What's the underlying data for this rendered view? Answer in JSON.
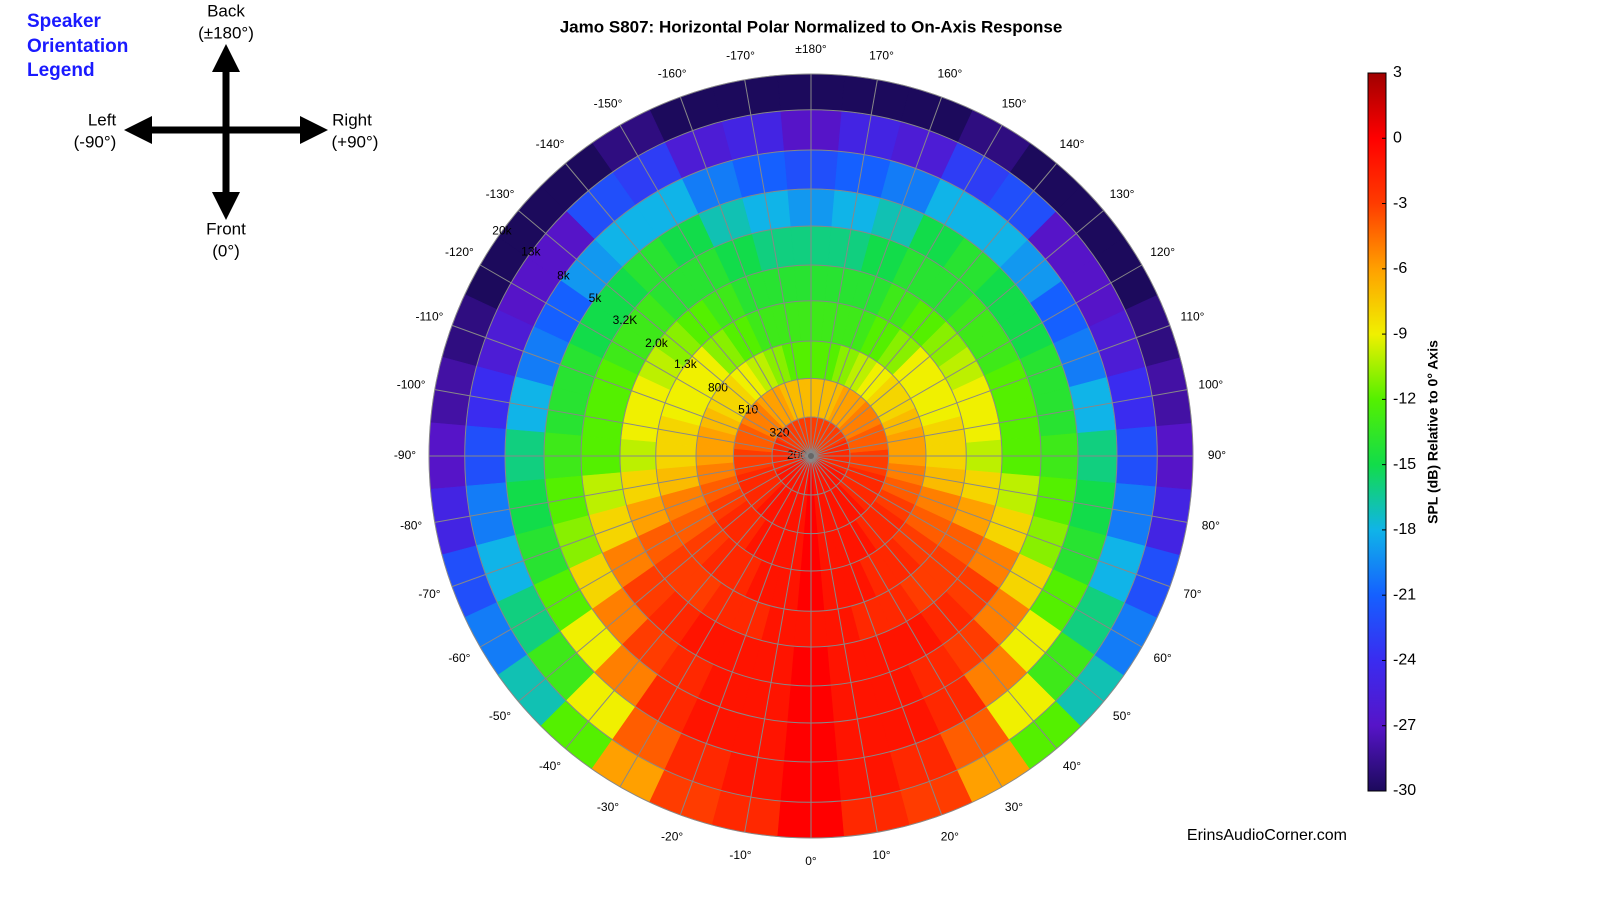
{
  "orientation_legend": {
    "title_lines": [
      "Speaker",
      "Orientation",
      "Legend"
    ],
    "back": [
      "Back",
      "(±180°)"
    ],
    "left": [
      "Left",
      "(-90°)"
    ],
    "right": [
      "Right",
      "(+90°)"
    ],
    "front": [
      "Front",
      "(0°)"
    ]
  },
  "watermark": "ErinsAudioCorner.com",
  "chart_data": {
    "type": "polar-heatmap",
    "title": "Jamo S807: Horizontal Polar Normalized to On-Axis Response",
    "angles": [
      {
        "value": -170,
        "label": "-170°"
      },
      {
        "value": -160,
        "label": "-160°"
      },
      {
        "value": -150,
        "label": "-150°"
      },
      {
        "value": -140,
        "label": "-140°"
      },
      {
        "value": -130,
        "label": "-130°"
      },
      {
        "value": -120,
        "label": "-120°"
      },
      {
        "value": -110,
        "label": "-110°"
      },
      {
        "value": -100,
        "label": "-100°"
      },
      {
        "value": -90,
        "label": "-90°"
      },
      {
        "value": -80,
        "label": "-80°"
      },
      {
        "value": -70,
        "label": "-70°"
      },
      {
        "value": -60,
        "label": "-60°"
      },
      {
        "value": -50,
        "label": "-50°"
      },
      {
        "value": -40,
        "label": "-40°"
      },
      {
        "value": -30,
        "label": "-30°"
      },
      {
        "value": -20,
        "label": "-20°"
      },
      {
        "value": -10,
        "label": "-10°"
      },
      {
        "value": 0,
        "label": "0°"
      },
      {
        "value": 10,
        "label": "10°"
      },
      {
        "value": 20,
        "label": "20°"
      },
      {
        "value": 30,
        "label": "30°"
      },
      {
        "value": 40,
        "label": "40°"
      },
      {
        "value": 50,
        "label": "50°"
      },
      {
        "value": 60,
        "label": "60°"
      },
      {
        "value": 70,
        "label": "70°"
      },
      {
        "value": 80,
        "label": "80°"
      },
      {
        "value": 90,
        "label": "90°"
      },
      {
        "value": 100,
        "label": "100°"
      },
      {
        "value": 110,
        "label": "110°"
      },
      {
        "value": 120,
        "label": "120°"
      },
      {
        "value": 130,
        "label": "130°"
      },
      {
        "value": 140,
        "label": "140°"
      },
      {
        "value": 150,
        "label": "150°"
      },
      {
        "value": 160,
        "label": "160°"
      },
      {
        "value": 170,
        "label": "170°"
      },
      {
        "value": 180,
        "label": "±180°"
      }
    ],
    "frequencies": [
      200,
      320,
      510,
      800,
      {
        "value": 1300,
        "label": "1.3k"
      },
      {
        "value": 2000,
        "label": "2.0k"
      },
      {
        "value": 3200,
        "label": "3.2K"
      },
      {
        "value": 5000,
        "label": "5k"
      },
      {
        "value": 8000,
        "label": "8k"
      },
      {
        "value": 13000,
        "label": "13k"
      },
      {
        "value": 20000,
        "label": "20k"
      }
    ],
    "values": [
      [
        -3,
        -7,
        -12,
        -13,
        -14,
        -16,
        -18,
        -21,
        -25,
        -30
      ],
      [
        -3,
        -7,
        -11,
        -13,
        -14,
        -15,
        -17,
        -20,
        -26,
        -30
      ],
      [
        -3,
        -6,
        -10,
        -12,
        -13,
        -14,
        -15,
        -18,
        -23,
        -29
      ],
      [
        -3,
        -6,
        -9,
        -11,
        -12,
        -14,
        -14,
        -18,
        -22,
        -30
      ],
      [
        -3,
        -5,
        -8,
        -9,
        -11,
        -13,
        -15,
        -19,
        -27,
        -30
      ],
      [
        -3,
        -5,
        -8,
        -9,
        -10,
        -13,
        -15,
        -21,
        -27,
        -30
      ],
      [
        -2,
        -4,
        -7,
        -9,
        -9,
        -12,
        -14,
        -20,
        -26,
        -29
      ],
      [
        -2,
        -4,
        -6,
        -8,
        -9,
        -12,
        -14,
        -18,
        -24,
        -28
      ],
      [
        -2,
        -3,
        -6,
        -8,
        -10,
        -12,
        -13,
        -16,
        -22,
        -27
      ],
      [
        -2,
        -3,
        -5,
        -7,
        -8,
        -10,
        -12,
        -15,
        -20,
        -25
      ],
      [
        -2,
        -2,
        -4,
        -5,
        -6,
        -8,
        -11,
        -14,
        -18,
        -22
      ],
      [
        -1,
        -2,
        -3,
        -4,
        -4,
        -5,
        -8,
        -12,
        -16,
        -20
      ],
      [
        -1,
        -2,
        -2,
        -3,
        -3,
        -3,
        -5,
        -9,
        -13,
        -17
      ],
      [
        -1,
        -1,
        -2,
        -2,
        -3,
        -2,
        -3,
        -5,
        -9,
        -12
      ],
      [
        -1,
        -1,
        -1,
        -2,
        -2,
        -1,
        -2,
        -2,
        -4,
        -6
      ],
      [
        -1,
        -1,
        -1,
        -1,
        -2,
        -1,
        -1,
        -1,
        -2,
        -3
      ],
      [
        -1,
        -1,
        -1,
        -1,
        -1,
        -1,
        -1,
        -1,
        -1,
        -2
      ],
      [
        0,
        0,
        0,
        0,
        -1,
        0,
        0,
        0,
        0,
        0
      ],
      [
        -1,
        -1,
        -1,
        -1,
        -1,
        -1,
        -1,
        -1,
        -1,
        -2
      ],
      [
        -1,
        -1,
        -1,
        -1,
        -2,
        -1,
        -1,
        -1,
        -2,
        -3
      ],
      [
        -1,
        -1,
        -1,
        -2,
        -2,
        -1,
        -2,
        -2,
        -4,
        -6
      ],
      [
        -1,
        -1,
        -2,
        -2,
        -3,
        -2,
        -3,
        -5,
        -9,
        -12
      ],
      [
        -1,
        -2,
        -2,
        -3,
        -3,
        -3,
        -5,
        -9,
        -13,
        -17
      ],
      [
        -1,
        -2,
        -3,
        -4,
        -4,
        -5,
        -8,
        -12,
        -16,
        -20
      ],
      [
        -2,
        -2,
        -4,
        -5,
        -6,
        -8,
        -11,
        -14,
        -18,
        -22
      ],
      [
        -2,
        -3,
        -5,
        -7,
        -8,
        -10,
        -12,
        -15,
        -20,
        -25
      ],
      [
        -2,
        -3,
        -6,
        -8,
        -10,
        -12,
        -13,
        -16,
        -22,
        -27
      ],
      [
        -2,
        -4,
        -6,
        -8,
        -9,
        -12,
        -14,
        -18,
        -24,
        -28
      ],
      [
        -2,
        -4,
        -7,
        -9,
        -9,
        -12,
        -14,
        -20,
        -26,
        -29
      ],
      [
        -3,
        -5,
        -8,
        -9,
        -10,
        -13,
        -15,
        -21,
        -27,
        -30
      ],
      [
        -3,
        -5,
        -8,
        -9,
        -11,
        -13,
        -15,
        -19,
        -27,
        -30
      ],
      [
        -3,
        -6,
        -9,
        -11,
        -12,
        -14,
        -14,
        -18,
        -22,
        -30
      ],
      [
        -3,
        -6,
        -10,
        -12,
        -13,
        -14,
        -15,
        -18,
        -23,
        -29
      ],
      [
        -3,
        -7,
        -11,
        -13,
        -14,
        -15,
        -17,
        -20,
        -26,
        -30
      ],
      [
        -3,
        -7,
        -12,
        -13,
        -14,
        -16,
        -18,
        -21,
        -25,
        -30
      ],
      [
        -3,
        -7,
        -12,
        -13,
        -14,
        -16,
        -19,
        -22,
        -27,
        -30
      ]
    ],
    "colorbar_label": "SPL (dB) Relative to 0° Axis",
    "clim": [
      -30,
      3
    ],
    "cticks": [
      3,
      0,
      -3,
      -6,
      -9,
      -12,
      -15,
      -18,
      -21,
      -24,
      -27,
      -30
    ],
    "colormap": [
      "#1c0a5c",
      "#5614c8",
      "#3a2cf0",
      "#1560ff",
      "#10b4e8",
      "#12dc4a",
      "#54f000",
      "#f0f000",
      "#ffa000",
      "#ff3c00",
      "#ff0000",
      "#a00000"
    ],
    "grid": true
  }
}
